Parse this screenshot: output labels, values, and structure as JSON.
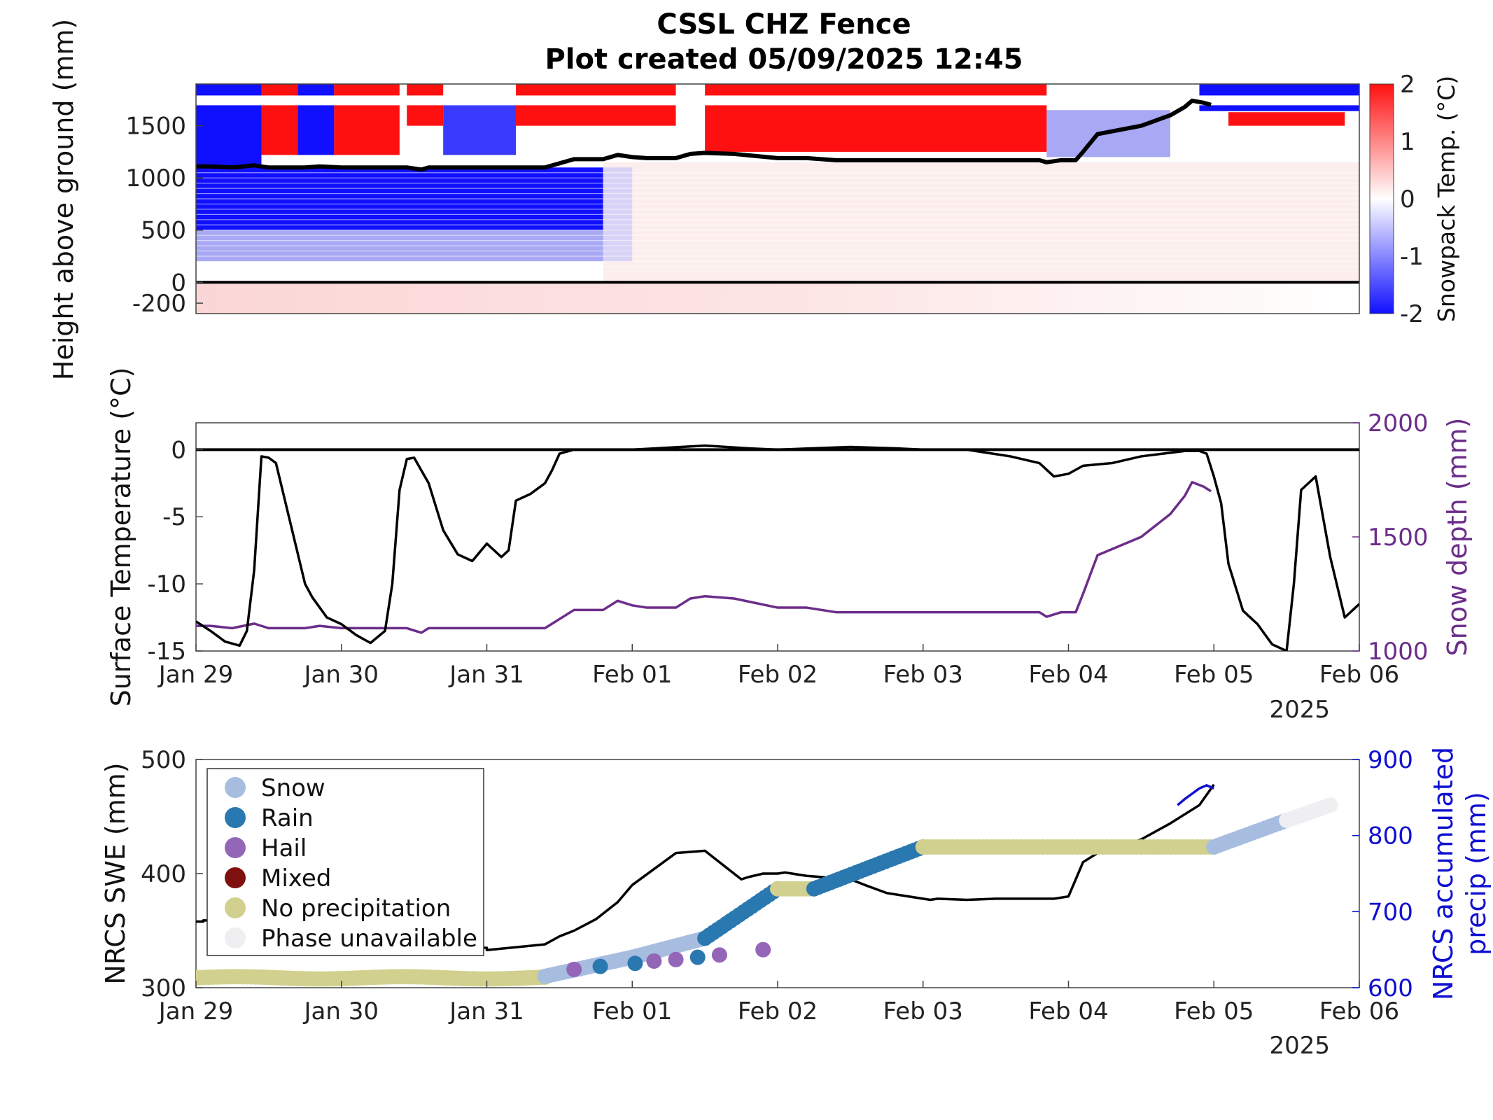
{
  "figure": {
    "title_line1": "CSSL CHZ Fence",
    "title_line2": "Plot created 05/09/2025 12:45",
    "year_label": "2025"
  },
  "chart_data": [
    {
      "type": "heatmap",
      "name": "snowpack-temperature",
      "ylabel": "Height above ground (mm)",
      "yticks": [
        "-200",
        "0",
        "500",
        "1000",
        "1500"
      ],
      "ytick_values": [
        -200,
        0,
        500,
        1000,
        1500
      ],
      "ylim": [
        -300,
        1900
      ],
      "xlim_days": [
        "Jan 29",
        "Feb 06"
      ],
      "colorbar": {
        "label": "Snowpack Temp. (°C)",
        "range": [
          -2,
          2
        ],
        "ticks": [
          "-2",
          "-1",
          "0",
          "1",
          "2"
        ],
        "colors": {
          "cold": "#1010ff",
          "zero": "#ffffff",
          "warm": "#ff1010"
        }
      },
      "snow_depth_line": {
        "x_days": [
          0,
          0.1,
          0.25,
          0.4,
          0.5,
          0.75,
          0.85,
          1.0,
          1.45,
          1.55,
          1.6,
          1.7,
          2.0,
          2.4,
          2.45,
          2.6,
          2.8,
          2.9,
          3.0,
          3.1,
          3.3,
          3.4,
          3.5,
          3.7,
          4.0,
          4.2,
          4.4,
          4.8,
          5.0,
          5.5,
          5.8,
          5.85,
          5.95,
          6.05,
          6.1,
          6.2,
          6.5,
          6.7,
          6.8,
          6.85,
          6.93,
          6.98
        ],
        "y_mm": [
          1110,
          1110,
          1100,
          1120,
          1100,
          1100,
          1110,
          1100,
          1100,
          1080,
          1100,
          1100,
          1100,
          1100,
          1120,
          1180,
          1180,
          1220,
          1200,
          1190,
          1190,
          1230,
          1240,
          1230,
          1190,
          1190,
          1170,
          1170,
          1170,
          1170,
          1170,
          1150,
          1170,
          1170,
          1250,
          1420,
          1500,
          1600,
          1680,
          1740,
          1720,
          1700
        ],
        "color": "#000000"
      },
      "warm_regions_top": [
        {
          "from": 0.45,
          "to": 0.7,
          "mm_from": 1220,
          "mm_to": 1900
        },
        {
          "from": 0.95,
          "to": 1.4,
          "mm_from": 1220,
          "mm_to": 1900
        },
        {
          "from": 1.45,
          "to": 1.7,
          "mm_from": 1500,
          "mm_to": 1900
        },
        {
          "from": 2.2,
          "to": 3.3,
          "mm_from": 1500,
          "mm_to": 1900
        },
        {
          "from": 3.5,
          "to": 5.85,
          "mm_from": 1250,
          "mm_to": 1900
        },
        {
          "from": 7.1,
          "to": 7.9,
          "mm_from": 1500,
          "mm_to": 1630
        }
      ],
      "cold_regions": [
        {
          "from": 0,
          "to": 2.8,
          "mm_from": 500,
          "mm_to": 1100,
          "intensity": 1.0
        },
        {
          "from": 0,
          "to": 2.8,
          "mm_from": 200,
          "mm_to": 500,
          "intensity": 0.5
        },
        {
          "from": 0,
          "to": 0.45,
          "mm_from": 1100,
          "mm_to": 1900,
          "intensity": 1.0
        },
        {
          "from": 0.7,
          "to": 0.95,
          "mm_from": 1220,
          "mm_to": 1900,
          "intensity": 1.0
        },
        {
          "from": 1.7,
          "to": 2.2,
          "mm_from": 1220,
          "mm_to": 1700,
          "intensity": 0.85
        },
        {
          "from": 5.85,
          "to": 6.7,
          "mm_from": 1200,
          "mm_to": 1650,
          "intensity": 0.5
        },
        {
          "from": 6.9,
          "to": 8.0,
          "mm_from": 1640,
          "mm_to": 1900,
          "intensity": 1.0
        }
      ]
    },
    {
      "type": "line",
      "name": "surface-temperature-and-snow-depth",
      "ylabel": "Surface Temperature (°C)",
      "y2label": "Snow depth (mm)",
      "ylim": [
        -15,
        2
      ],
      "y2lim": [
        1000,
        2000
      ],
      "yticks": [
        "-15",
        "-10",
        "-5",
        "0"
      ],
      "ytick_values": [
        -15,
        -10,
        -5,
        0
      ],
      "y2ticks": [
        "1000",
        "1500",
        "2000"
      ],
      "y2tick_values": [
        1000,
        1500,
        2000
      ],
      "xticks": [
        "Jan 29",
        "Jan 30",
        "Jan 31",
        "Feb 01",
        "Feb 02",
        "Feb 03",
        "Feb 04",
        "Feb 05",
        "Feb 06"
      ],
      "series": [
        {
          "role": "surface-temperature",
          "color": "#000000",
          "x_days": [
            0,
            0.1,
            0.2,
            0.3,
            0.35,
            0.4,
            0.45,
            0.5,
            0.55,
            0.65,
            0.75,
            0.8,
            0.9,
            1.0,
            1.1,
            1.2,
            1.3,
            1.35,
            1.4,
            1.45,
            1.5,
            1.6,
            1.7,
            1.8,
            1.9,
            2.0,
            2.1,
            2.15,
            2.2,
            2.3,
            2.4,
            2.45,
            2.5,
            2.6,
            2.8,
            3.0,
            3.5,
            3.8,
            4.0,
            4.5,
            4.8,
            5.0,
            5.3,
            5.6,
            5.8,
            5.9,
            6.0,
            6.1,
            6.3,
            6.5,
            6.8,
            6.9,
            6.95,
            7.0,
            7.05,
            7.1,
            7.2,
            7.3,
            7.4,
            7.5,
            7.55,
            7.6,
            7.7,
            7.8,
            7.9,
            8.0
          ],
          "y": [
            -12.8,
            -13.5,
            -14.3,
            -14.6,
            -13.5,
            -9.0,
            -0.5,
            -0.6,
            -1.0,
            -5.5,
            -10.0,
            -11.0,
            -12.5,
            -13.0,
            -13.8,
            -14.4,
            -13.5,
            -10.0,
            -3.0,
            -0.7,
            -0.6,
            -2.5,
            -6.0,
            -7.8,
            -8.3,
            -7.0,
            -8.0,
            -7.5,
            -3.8,
            -3.3,
            -2.5,
            -1.5,
            -0.3,
            0.0,
            0.0,
            0.0,
            0.3,
            0.1,
            0.0,
            0.2,
            0.1,
            0.0,
            0.0,
            -0.5,
            -1.0,
            -2.0,
            -1.8,
            -1.2,
            -1.0,
            -0.5,
            -0.1,
            -0.1,
            -0.3,
            -2.0,
            -4.0,
            -8.5,
            -12.0,
            -13.0,
            -14.5,
            -15.0,
            -10.0,
            -3.0,
            -2.0,
            -8.0,
            -12.5,
            -11.5
          ]
        },
        {
          "role": "snow-depth",
          "color": "#6c2d8a",
          "x_days": [
            0,
            0.1,
            0.25,
            0.4,
            0.5,
            0.75,
            0.85,
            1.0,
            1.45,
            1.55,
            1.6,
            1.7,
            2.0,
            2.4,
            2.45,
            2.6,
            2.8,
            2.9,
            3.0,
            3.1,
            3.3,
            3.4,
            3.5,
            3.7,
            4.0,
            4.2,
            4.4,
            4.8,
            5.0,
            5.5,
            5.8,
            5.85,
            5.95,
            6.05,
            6.1,
            6.2,
            6.5,
            6.7,
            6.8,
            6.85,
            6.93,
            6.98
          ],
          "y": [
            1110,
            1110,
            1100,
            1120,
            1100,
            1100,
            1110,
            1100,
            1100,
            1080,
            1100,
            1100,
            1100,
            1100,
            1120,
            1180,
            1180,
            1220,
            1200,
            1190,
            1190,
            1230,
            1240,
            1230,
            1190,
            1190,
            1170,
            1170,
            1170,
            1170,
            1170,
            1150,
            1170,
            1170,
            1250,
            1420,
            1500,
            1600,
            1680,
            1740,
            1720,
            1700
          ]
        }
      ],
      "zero_line": true
    },
    {
      "type": "scatter",
      "name": "nrcs-swe-and-precip",
      "ylabel": "NRCS SWE (mm)",
      "y2label_line1": "NRCS accumulated",
      "y2label_line2": "precip (mm)",
      "ylim": [
        300,
        500
      ],
      "y2lim": [
        600,
        900
      ],
      "yticks": [
        "300",
        "400",
        "500"
      ],
      "ytick_values": [
        300,
        400,
        500
      ],
      "y2ticks": [
        "600",
        "700",
        "800",
        "900"
      ],
      "y2tick_values": [
        600,
        700,
        800,
        900
      ],
      "xticks": [
        "Jan 29",
        "Jan 30",
        "Jan 31",
        "Feb 01",
        "Feb 02",
        "Feb 03",
        "Feb 04",
        "Feb 05",
        "Feb 06"
      ],
      "legend": {
        "placement": "top-left",
        "entries": [
          {
            "label": "Snow",
            "color": "#a7bde0"
          },
          {
            "label": "Rain",
            "color": "#2a78b0"
          },
          {
            "label": "Hail",
            "color": "#9466b8"
          },
          {
            "label": "Mixed",
            "color": "#7e1010"
          },
          {
            "label": "No precipitation",
            "color": "#d1d08e"
          },
          {
            "label": "Phase unavailable",
            "color": "#efeff1"
          }
        ]
      },
      "swe_line": {
        "color": "#000000",
        "x_days": [
          0,
          0.05,
          0.05,
          0.5,
          0.5,
          0.7,
          0.7,
          2.0,
          2.0,
          2.4,
          2.5,
          2.6,
          2.75,
          2.9,
          3.0,
          3.3,
          3.5,
          3.65,
          3.75,
          3.8,
          3.9,
          4.0,
          4.05,
          4.2,
          4.3,
          4.5,
          4.6,
          4.75,
          4.9,
          5.0,
          5.05,
          5.1,
          5.3,
          5.5,
          5.7,
          5.9,
          6.0,
          6.05,
          6.1,
          6.2,
          6.3,
          6.5,
          6.7,
          6.9,
          7.0
        ],
        "y_mm": [
          358,
          358,
          359,
          359,
          358,
          358,
          335,
          335,
          333,
          338,
          345,
          350,
          360,
          375,
          390,
          418,
          420,
          405,
          395,
          397,
          400,
          400,
          401,
          398,
          397,
          395,
          390,
          383,
          380,
          378,
          377,
          378,
          377,
          378,
          378,
          378,
          380,
          395,
          410,
          418,
          421,
          430,
          444,
          460,
          478
        ]
      },
      "precip_line": {
        "color": "#1010d0",
        "x_days": [
          6.75,
          6.8,
          6.85,
          6.9,
          6.95,
          7.0
        ],
        "y_mm": [
          840,
          848,
          855,
          862,
          866,
          862
        ]
      },
      "phase_points": [
        {
          "from": 0,
          "to": 2.4,
          "y_start": 613,
          "y_end": 613,
          "phase": "No precipitation",
          "wave": 1.5
        },
        {
          "from": 2.4,
          "to": 3.0,
          "y_start": 615,
          "y_end": 640,
          "phase": "Snow",
          "wave": 0
        },
        {
          "from": 3.0,
          "to": 3.5,
          "y_start": 640,
          "y_end": 665,
          "phase": "Snow",
          "wave": 0
        },
        {
          "from": 3.5,
          "to": 4.0,
          "y_start": 665,
          "y_end": 730,
          "phase": "Rain",
          "wave": 0
        },
        {
          "from": 4.0,
          "to": 4.25,
          "y_start": 730,
          "y_end": 730,
          "phase": "No precipitation",
          "wave": 0
        },
        {
          "from": 4.25,
          "to": 5.0,
          "y_start": 730,
          "y_end": 785,
          "phase": "Rain",
          "wave": 0
        },
        {
          "from": 5.0,
          "to": 7.0,
          "y_start": 785,
          "y_end": 785,
          "phase": "No precipitation",
          "wave": 0
        },
        {
          "from": 7.0,
          "to": 7.5,
          "y_start": 785,
          "y_end": 820,
          "phase": "Snow",
          "wave": 0
        },
        {
          "from": 7.5,
          "to": 7.8,
          "y_start": 820,
          "y_end": 840,
          "phase": "Phase unavailable",
          "wave": 0
        }
      ],
      "accent_points": [
        {
          "x_day": 2.6,
          "y_mm": 624,
          "phase": "Hail"
        },
        {
          "x_day": 2.78,
          "y_mm": 628,
          "phase": "Rain"
        },
        {
          "x_day": 3.02,
          "y_mm": 632,
          "phase": "Rain"
        },
        {
          "x_day": 3.15,
          "y_mm": 635,
          "phase": "Hail"
        },
        {
          "x_day": 3.3,
          "y_mm": 637,
          "phase": "Hail"
        },
        {
          "x_day": 3.45,
          "y_mm": 640,
          "phase": "Rain"
        },
        {
          "x_day": 3.6,
          "y_mm": 643,
          "phase": "Hail"
        },
        {
          "x_day": 3.9,
          "y_mm": 650,
          "phase": "Hail"
        }
      ]
    }
  ]
}
